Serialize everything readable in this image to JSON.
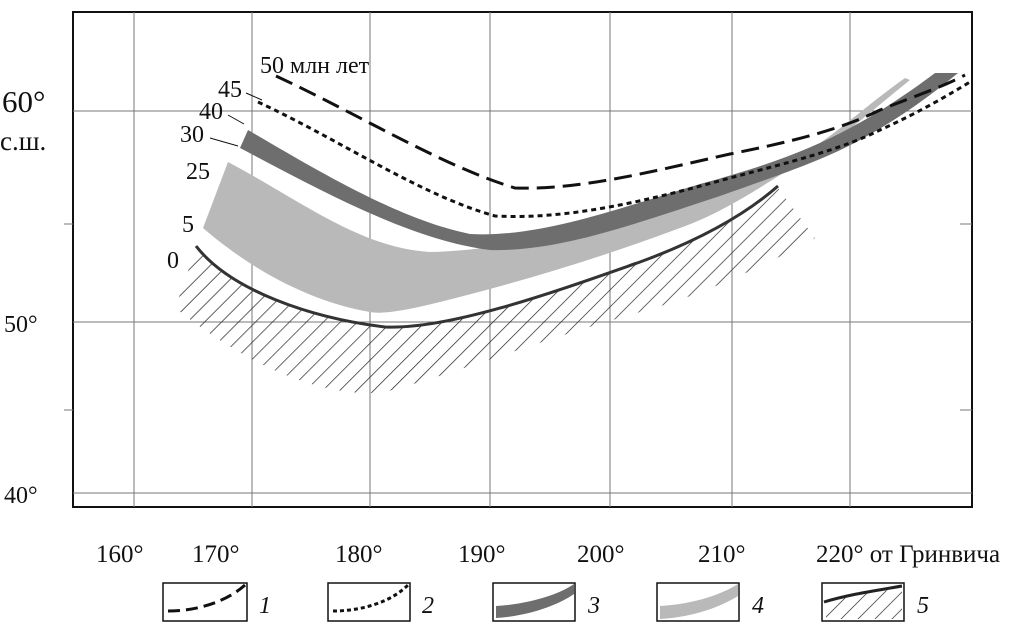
{
  "map": {
    "lat_labels": {
      "lat60": "60°",
      "lat60_suffix": "с.ш.",
      "lat50": "50°",
      "lat40": "40°"
    },
    "lon_labels": [
      "160°",
      "170°",
      "180°",
      "190°",
      "200°",
      "210°",
      "220° от Гринвича"
    ],
    "age_labels": {
      "a50": "50 млн лет",
      "a45": "45",
      "a40": "40",
      "a30": "30",
      "a25": "25",
      "a5": "5",
      "a0": "0"
    },
    "colors": {
      "band_dark": "#6e6e6e",
      "band_light": "#b9b9b9",
      "lines": "#111111",
      "grid": "#777777"
    }
  },
  "legend": [
    {
      "number": "1",
      "symbol": "dashed-line"
    },
    {
      "number": "2",
      "symbol": "dotted-line"
    },
    {
      "number": "3",
      "symbol": "dark-band"
    },
    {
      "number": "4",
      "symbol": "light-band"
    },
    {
      "number": "5",
      "symbol": "hatched-line"
    }
  ]
}
